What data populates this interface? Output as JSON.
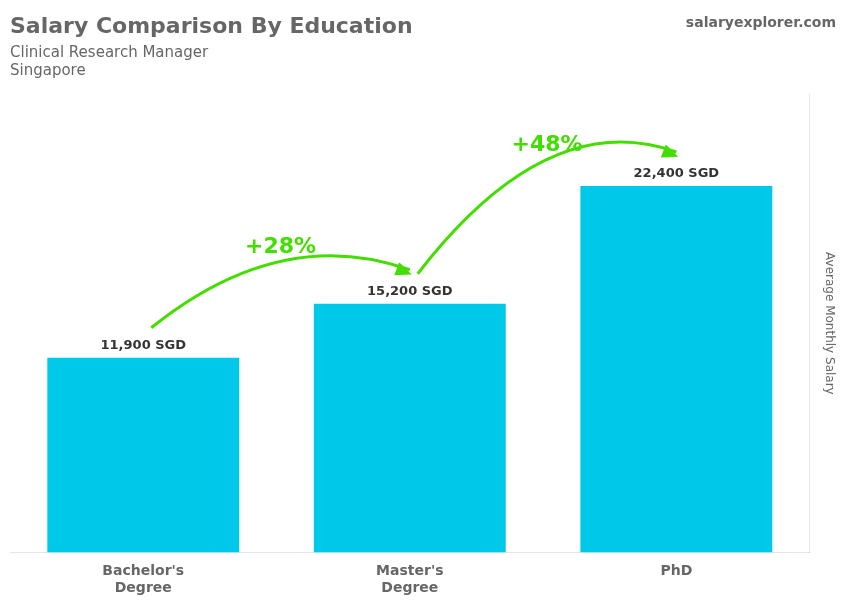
{
  "chart_data": {
    "type": "bar",
    "title": "Salary Comparison By Education",
    "subtitle": "Clinical Research Manager",
    "location": "Singapore",
    "source": "salaryexplorer.com",
    "y_label": "Average Monthly Salary",
    "categories": [
      "Bachelor's\nDegree",
      "Master's\nDegree",
      "PhD"
    ],
    "values": [
      11900,
      15200,
      22400
    ],
    "value_labels": [
      "11,900 SGD",
      "15,200 SGD",
      "22,400 SGD"
    ],
    "data_labels": true,
    "color": "#00C8E8",
    "ylim": [
      0,
      28000
    ],
    "grid": false,
    "tick_labels": "x",
    "annotations": [
      {
        "from": "Bachelor's\nDegree",
        "to": "Master's\nDegree",
        "label": "+28%",
        "color": "#44DD00"
      },
      {
        "from": "Master's\nDegree",
        "to": "PhD",
        "label": "+48%",
        "color": "#44DD00"
      }
    ]
  }
}
